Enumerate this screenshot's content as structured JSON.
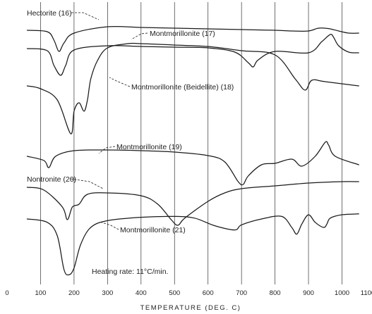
{
  "chart_data": {
    "type": "line",
    "xlabel": "TEMPERATURE (DEG. C)",
    "xlim": [
      0,
      1000
    ],
    "x_ticks": [
      "0",
      "100",
      "200",
      "300",
      "400",
      "500",
      "600",
      "700",
      "800",
      "900",
      "1000",
      "1100"
    ],
    "grid": true,
    "annotation": "Heating rate: 11°C/min.",
    "series": [
      {
        "name": "Hectorite (16)",
        "x": [
          60,
          120,
          140,
          155,
          170,
          200,
          300,
          400,
          500,
          600,
          700,
          800,
          850,
          900,
          930,
          960,
          990,
          1020,
          1050
        ],
        "y": [
          0,
          0.1,
          0.7,
          1.5,
          0.9,
          0.2,
          -0.25,
          -0.2,
          -0.15,
          -0.1,
          -0.05,
          0,
          0.05,
          0.05,
          -0.15,
          -0.12,
          0.05,
          0.2,
          0.2
        ]
      },
      {
        "name": "Montmorillonite (17)",
        "x": [
          60,
          120,
          140,
          160,
          175,
          200,
          300,
          400,
          500,
          600,
          680,
          720,
          735,
          750,
          800,
          900,
          940,
          965,
          975,
          990,
          1020,
          1050
        ],
        "y": [
          0,
          0.15,
          1.2,
          1.9,
          1.2,
          0.1,
          -0.2,
          -0.15,
          -0.1,
          -0.05,
          0.25,
          1.0,
          1.3,
          0.8,
          0.2,
          0.3,
          -0.5,
          -1.0,
          -0.8,
          -0.2,
          0.25,
          0.3
        ]
      },
      {
        "name": "Montmorillonite (Beidellite) (18)",
        "x": [
          60,
          100,
          150,
          190,
          200,
          215,
          230,
          240,
          250,
          270,
          300,
          360,
          400,
          500,
          600,
          700,
          800,
          860,
          890,
          910,
          950,
          1050
        ],
        "y": [
          0,
          0.2,
          1.0,
          3.4,
          1.8,
          1.2,
          1.8,
          1.0,
          -0.5,
          -1.8,
          -2.7,
          -3.0,
          -3.0,
          -2.9,
          -2.8,
          -2.5,
          -2.2,
          -0.5,
          0.3,
          -0.4,
          -0.3,
          0
        ]
      },
      {
        "name": "Montmorillonite (19)",
        "x": [
          60,
          110,
          125,
          145,
          200,
          300,
          400,
          500,
          600,
          650,
          690,
          705,
          720,
          760,
          800,
          850,
          880,
          920,
          950,
          960,
          980,
          1050
        ],
        "y": [
          0,
          0.3,
          0.8,
          0,
          -0.4,
          -0.45,
          -0.4,
          -0.3,
          -0.05,
          0.4,
          1.8,
          2.0,
          1.4,
          0.6,
          0.5,
          0.2,
          0.7,
          0,
          -1.0,
          -0.8,
          0,
          0.6
        ]
      },
      {
        "name": "Nontronite (20)",
        "x": [
          60,
          110,
          165,
          180,
          195,
          215,
          240,
          300,
          400,
          450,
          490,
          510,
          530,
          600,
          650,
          700,
          800,
          900,
          1000,
          1050
        ],
        "y": [
          0,
          0.2,
          1.4,
          2.3,
          1.4,
          1.2,
          0.5,
          0.4,
          0.6,
          1.2,
          2.3,
          2.7,
          2.2,
          1.0,
          0.4,
          0.1,
          -0.1,
          -0.3,
          -0.4,
          -0.4
        ]
      },
      {
        "name": "Montmorillonite (21)",
        "x": [
          60,
          120,
          150,
          170,
          185,
          200,
          220,
          250,
          300,
          400,
          500,
          560,
          620,
          680,
          700,
          760,
          820,
          850,
          865,
          880,
          900,
          920,
          945,
          955,
          965,
          1000,
          1050
        ],
        "y": [
          0,
          0.4,
          2.0,
          6.0,
          6.6,
          5.8,
          3.0,
          1.0,
          0.2,
          -0.2,
          -0.3,
          -0.1,
          0.8,
          1.3,
          0.7,
          0,
          -0.3,
          1.0,
          1.8,
          0.6,
          -0.5,
          0.4,
          1.0,
          0.6,
          -0.1,
          -0.5,
          -0.6
        ]
      }
    ]
  }
}
